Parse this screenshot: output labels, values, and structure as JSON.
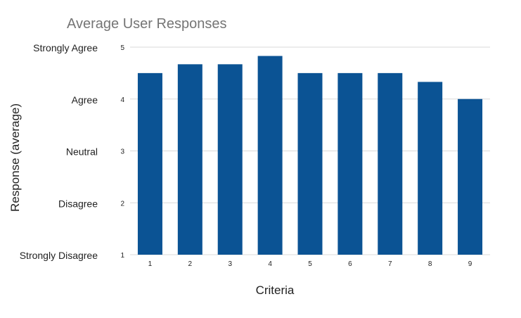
{
  "chart_data": {
    "type": "bar",
    "title": "Average User Responses",
    "xlabel": "Criteria",
    "ylabel": "Response (average)",
    "categories": [
      "1",
      "2",
      "3",
      "4",
      "5",
      "6",
      "7",
      "8",
      "9"
    ],
    "values": [
      4.5,
      4.67,
      4.67,
      4.83,
      4.5,
      4.5,
      4.5,
      4.33,
      4.0
    ],
    "ylim": [
      1,
      5
    ],
    "yticks": [
      "1",
      "2",
      "3",
      "4",
      "5"
    ],
    "y_category_labels": [
      "Strongly Disagree",
      "Disagree",
      "Neutral",
      "Agree",
      "Strongly Agree"
    ],
    "grid": true,
    "legend": "none",
    "bar_color": "#0b5394"
  }
}
